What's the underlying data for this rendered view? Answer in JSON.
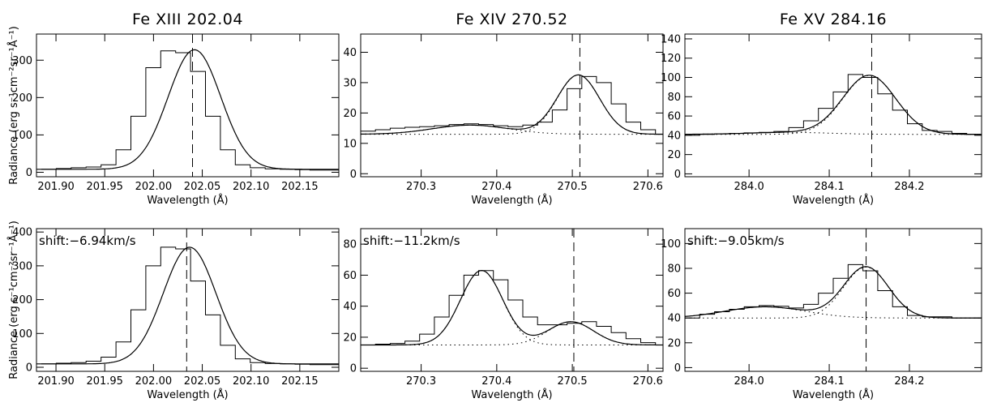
{
  "chart_data": [
    {
      "type": "line",
      "title": "Fe XIII 202.04",
      "xlabel": "Wavelength (Å)",
      "ylabel": "Radiance (erg s⁻¹cm⁻²sr⁻¹Å⁻¹)",
      "xlim": [
        201.88,
        202.19
      ],
      "ylim": [
        -12,
        370
      ],
      "xticks": [
        201.9,
        201.95,
        202.0,
        202.05,
        202.1,
        202.15
      ],
      "xtick_labels": [
        "201.90",
        "201.95",
        "202.00",
        "202.05",
        "202.10",
        "202.15"
      ],
      "yticks": [
        0,
        100,
        200,
        300
      ],
      "ytick_labels": [
        "0",
        "100",
        "200",
        "300"
      ],
      "center": 202.04,
      "annotation": "",
      "bins": {
        "start": 201.885,
        "width": 0.0153,
        "values": [
          8,
          10,
          12,
          14,
          20,
          60,
          150,
          280,
          325,
          320,
          270,
          150,
          60,
          20,
          12,
          9,
          8,
          7,
          6,
          6
        ]
      },
      "components": [],
      "fit": {
        "baseline": 8,
        "peaks": [
          {
            "center": 202.042,
            "amplitude": 320,
            "sigma": 0.027
          }
        ]
      }
    },
    {
      "type": "line",
      "title": "Fe XIV 270.52",
      "xlabel": "Wavelength (Å)",
      "ylabel": "",
      "xlim": [
        270.22,
        270.62
      ],
      "ylim": [
        -1,
        46
      ],
      "xticks": [
        270.3,
        270.4,
        270.5,
        270.6
      ],
      "xtick_labels": [
        "270.3",
        "270.4",
        "270.5",
        "270.6"
      ],
      "yticks": [
        0,
        10,
        20,
        30,
        40
      ],
      "ytick_labels": [
        "0",
        "10",
        "20",
        "30",
        "40"
      ],
      "center": 270.51,
      "annotation": "",
      "bins": {
        "start": 270.22,
        "width": 0.0195,
        "values": [
          14,
          14.5,
          15,
          15.3,
          15.5,
          15.8,
          16.2,
          16.4,
          16.2,
          15.8,
          15.5,
          16,
          17,
          21,
          28,
          32,
          30,
          23,
          17,
          14.5,
          13
        ]
      },
      "components": [
        {
          "baseline": 13,
          "center": 270.365,
          "amplitude": 3,
          "sigma": 0.05
        },
        {
          "baseline": 13,
          "center": 270.508,
          "amplitude": 19.5,
          "sigma": 0.028
        }
      ],
      "fit": {
        "baseline": 13,
        "peaks": [
          {
            "center": 270.365,
            "amplitude": 3,
            "sigma": 0.05
          },
          {
            "center": 270.508,
            "amplitude": 19.5,
            "sigma": 0.028
          }
        ]
      }
    },
    {
      "type": "line",
      "title": "Fe XV 284.16",
      "xlabel": "Wavelength (Å)",
      "ylabel": "",
      "xlim": [
        283.92,
        284.29
      ],
      "ylim": [
        -3,
        145
      ],
      "xticks": [
        284.0,
        284.1,
        284.2
      ],
      "xtick_labels": [
        "284.0",
        "284.1",
        "284.2"
      ],
      "yticks": [
        0,
        20,
        40,
        60,
        80,
        100,
        120,
        140
      ],
      "ytick_labels": [
        "0",
        "20",
        "40",
        "60",
        "80",
        "100",
        "120",
        "140"
      ],
      "center": 284.153,
      "annotation": "",
      "bins": {
        "start": 283.92,
        "width": 0.0185,
        "values": [
          40,
          41,
          41.5,
          42,
          42.5,
          43,
          44,
          48,
          55,
          68,
          85,
          103,
          100,
          83,
          66,
          52,
          45,
          44,
          42,
          41
        ]
      },
      "components": [
        {
          "baseline": 41,
          "center": 284.05,
          "amplitude": 2,
          "sigma": 0.05
        },
        {
          "baseline": 41,
          "center": 284.15,
          "amplitude": 61,
          "sigma": 0.033
        }
      ],
      "fit": {
        "baseline": 41,
        "peaks": [
          {
            "center": 284.05,
            "amplitude": 2,
            "sigma": 0.05
          },
          {
            "center": 284.15,
            "amplitude": 61,
            "sigma": 0.033
          }
        ]
      }
    },
    {
      "type": "line",
      "title": "",
      "xlabel": "Wavelength (Å)",
      "ylabel": "Radiance (erg s⁻¹cm⁻²sr⁻¹Å⁻¹)",
      "xlim": [
        201.88,
        202.19
      ],
      "ylim": [
        -12,
        410
      ],
      "xticks": [
        201.9,
        201.95,
        202.0,
        202.05,
        202.1,
        202.15
      ],
      "xtick_labels": [
        "201.90",
        "201.95",
        "202.00",
        "202.05",
        "202.10",
        "202.15"
      ],
      "yticks": [
        0,
        100,
        200,
        300,
        400
      ],
      "ytick_labels": [
        "0",
        "100",
        "200",
        "300",
        "400"
      ],
      "center": 202.034,
      "annotation": "shift:−6.94km/s",
      "bins": {
        "start": 201.885,
        "width": 0.0153,
        "values": [
          10,
          12,
          14,
          18,
          30,
          75,
          170,
          300,
          355,
          350,
          255,
          155,
          65,
          25,
          14,
          11,
          10,
          9,
          8,
          8
        ]
      },
      "components": [],
      "fit": {
        "baseline": 10,
        "peaks": [
          {
            "center": 202.037,
            "amplitude": 345,
            "sigma": 0.027
          }
        ]
      }
    },
    {
      "type": "line",
      "title": "",
      "xlabel": "Wavelength (Å)",
      "ylabel": "",
      "xlim": [
        270.22,
        270.62
      ],
      "ylim": [
        -2,
        90
      ],
      "xticks": [
        270.3,
        270.4,
        270.5,
        270.6
      ],
      "xtick_labels": [
        "270.3",
        "270.4",
        "270.5",
        "270.6"
      ],
      "yticks": [
        0,
        20,
        40,
        60,
        80
      ],
      "ytick_labels": [
        "0",
        "20",
        "40",
        "60",
        "80"
      ],
      "center": 270.502,
      "annotation": "shift:−11.2km/s",
      "bins": {
        "start": 270.22,
        "width": 0.0195,
        "values": [
          15,
          15.5,
          16,
          17.5,
          22,
          33,
          47,
          60,
          63,
          57,
          44,
          33,
          28,
          28,
          29,
          30,
          27,
          23,
          19,
          16.5,
          15
        ]
      },
      "components": [
        {
          "baseline": 15,
          "center": 270.38,
          "amplitude": 48,
          "sigma": 0.028
        },
        {
          "baseline": 15,
          "center": 270.498,
          "amplitude": 15,
          "sigma": 0.03
        }
      ],
      "fit": {
        "baseline": 15,
        "peaks": [
          {
            "center": 270.38,
            "amplitude": 48,
            "sigma": 0.028
          },
          {
            "center": 270.498,
            "amplitude": 15,
            "sigma": 0.03
          }
        ]
      }
    },
    {
      "type": "line",
      "title": "",
      "xlabel": "Wavelength (Å)",
      "ylabel": "",
      "xlim": [
        283.92,
        284.29
      ],
      "ylim": [
        -3,
        112
      ],
      "xticks": [
        284.0,
        284.1,
        284.2
      ],
      "xtick_labels": [
        "284.0",
        "284.1",
        "284.2"
      ],
      "yticks": [
        0,
        20,
        40,
        60,
        80,
        100
      ],
      "ytick_labels": [
        "0",
        "20",
        "40",
        "60",
        "80",
        "100"
      ],
      "center": 284.146,
      "annotation": "shift:−9.05km/s",
      "bins": {
        "start": 283.92,
        "width": 0.0185,
        "values": [
          40,
          43,
          45,
          47,
          49,
          50,
          49.5,
          48,
          51,
          60,
          72,
          83,
          78,
          62,
          49,
          42,
          41,
          41,
          40,
          40
        ]
      },
      "components": [
        {
          "baseline": 40,
          "center": 284.02,
          "amplitude": 9,
          "sigma": 0.05
        },
        {
          "baseline": 40,
          "center": 284.146,
          "amplitude": 41,
          "sigma": 0.028
        }
      ],
      "fit": {
        "baseline": 40,
        "peaks": [
          {
            "center": 284.02,
            "amplitude": 9,
            "sigma": 0.05
          },
          {
            "center": 284.146,
            "amplitude": 41,
            "sigma": 0.028
          }
        ]
      }
    }
  ]
}
